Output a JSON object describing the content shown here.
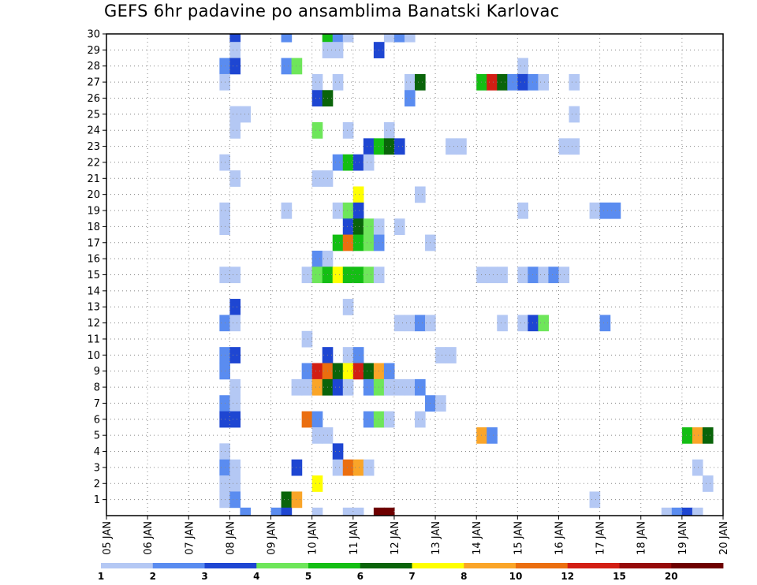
{
  "chart_data": {
    "type": "heatmap",
    "title": "GEFS 6hr padavine po ansamblima Banatski Karlovac",
    "xlabel": "",
    "ylabel": "",
    "x_ticks": [
      "05 JAN",
      "06 JAN",
      "07 JAN",
      "08 JAN",
      "09 JAN",
      "10 JAN",
      "11 JAN",
      "12 JAN",
      "13 JAN",
      "14 JAN",
      "15 JAN",
      "16 JAN",
      "17 JAN",
      "18 JAN",
      "19 JAN",
      "20 JAN"
    ],
    "x_range_days": [
      5,
      20
    ],
    "time_step_hours": 6,
    "y_ticks": [
      1,
      2,
      3,
      4,
      5,
      6,
      7,
      8,
      9,
      10,
      11,
      12,
      13,
      14,
      15,
      16,
      17,
      18,
      19,
      20,
      21,
      22,
      23,
      24,
      25,
      26,
      27,
      28,
      29,
      30
    ],
    "y_range": [
      0,
      30
    ],
    "grid": true,
    "legend": {
      "position": "bottom",
      "thresholds": [
        "1",
        "2",
        "3",
        "4",
        "5",
        "6",
        "7",
        "8",
        "10",
        "12",
        "15",
        "20"
      ],
      "colors": [
        "#b4c8f4",
        "#5a8cf0",
        "#1e46d2",
        "#6ee65a",
        "#14be14",
        "#0a640a",
        "#ffff00",
        "#faa528",
        "#eb6e0f",
        "#d21e14",
        "#960a0a",
        "#6e0000"
      ]
    },
    "cells_note": "each cell: [member, time step index from 05 JAN 00Z in 6h steps, color class index 0-11]",
    "cells": [
      [
        30,
        12,
        2
      ],
      [
        30,
        17,
        1
      ],
      [
        30,
        21,
        4
      ],
      [
        30,
        22,
        1
      ],
      [
        30,
        23,
        0
      ],
      [
        30,
        27,
        0
      ],
      [
        30,
        28,
        1
      ],
      [
        30,
        29,
        0
      ],
      [
        29,
        12,
        0
      ],
      [
        29,
        21,
        0
      ],
      [
        29,
        22,
        0
      ],
      [
        29,
        26,
        2
      ],
      [
        28,
        11,
        1
      ],
      [
        28,
        12,
        2
      ],
      [
        28,
        17,
        1
      ],
      [
        28,
        18,
        3
      ],
      [
        28,
        40,
        0
      ],
      [
        27,
        11,
        0
      ],
      [
        27,
        20,
        0
      ],
      [
        27,
        22,
        0
      ],
      [
        27,
        29,
        0
      ],
      [
        27,
        30,
        5
      ],
      [
        27,
        36,
        4
      ],
      [
        27,
        37,
        9
      ],
      [
        27,
        38,
        5
      ],
      [
        27,
        39,
        1
      ],
      [
        27,
        40,
        2
      ],
      [
        27,
        41,
        1
      ],
      [
        27,
        42,
        0
      ],
      [
        27,
        45,
        0
      ],
      [
        26,
        20,
        2
      ],
      [
        26,
        21,
        5
      ],
      [
        26,
        29,
        1
      ],
      [
        25,
        12,
        0
      ],
      [
        25,
        13,
        0
      ],
      [
        25,
        45,
        0
      ],
      [
        24,
        12,
        0
      ],
      [
        24,
        20,
        3
      ],
      [
        24,
        23,
        0
      ],
      [
        24,
        27,
        0
      ],
      [
        23,
        25,
        2
      ],
      [
        23,
        26,
        4
      ],
      [
        23,
        27,
        5
      ],
      [
        23,
        28,
        2
      ],
      [
        23,
        33,
        0
      ],
      [
        23,
        34,
        0
      ],
      [
        23,
        44,
        0
      ],
      [
        23,
        45,
        0
      ],
      [
        22,
        11,
        0
      ],
      [
        22,
        22,
        1
      ],
      [
        22,
        23,
        4
      ],
      [
        22,
        24,
        2
      ],
      [
        22,
        25,
        0
      ],
      [
        21,
        12,
        0
      ],
      [
        21,
        20,
        0
      ],
      [
        21,
        21,
        0
      ],
      [
        20,
        24,
        6
      ],
      [
        20,
        30,
        0
      ],
      [
        19,
        11,
        0
      ],
      [
        19,
        17,
        0
      ],
      [
        19,
        22,
        0
      ],
      [
        19,
        23,
        3
      ],
      [
        19,
        24,
        2
      ],
      [
        19,
        40,
        0
      ],
      [
        19,
        47,
        0
      ],
      [
        19,
        48,
        1
      ],
      [
        19,
        49,
        1
      ],
      [
        18,
        11,
        0
      ],
      [
        18,
        23,
        2
      ],
      [
        18,
        24,
        5
      ],
      [
        18,
        25,
        3
      ],
      [
        18,
        26,
        0
      ],
      [
        18,
        28,
        0
      ],
      [
        17,
        22,
        4
      ],
      [
        17,
        23,
        8
      ],
      [
        17,
        24,
        4
      ],
      [
        17,
        25,
        3
      ],
      [
        17,
        26,
        1
      ],
      [
        17,
        31,
        0
      ],
      [
        16,
        20,
        1
      ],
      [
        16,
        21,
        0
      ],
      [
        15,
        11,
        0
      ],
      [
        15,
        12,
        0
      ],
      [
        15,
        19,
        0
      ],
      [
        15,
        20,
        3
      ],
      [
        15,
        21,
        4
      ],
      [
        15,
        22,
        6
      ],
      [
        15,
        23,
        4
      ],
      [
        15,
        24,
        4
      ],
      [
        15,
        25,
        3
      ],
      [
        15,
        26,
        0
      ],
      [
        15,
        36,
        0
      ],
      [
        15,
        37,
        0
      ],
      [
        15,
        38,
        0
      ],
      [
        15,
        40,
        0
      ],
      [
        15,
        41,
        1
      ],
      [
        15,
        42,
        0
      ],
      [
        15,
        43,
        1
      ],
      [
        15,
        44,
        0
      ],
      [
        13,
        12,
        2
      ],
      [
        13,
        23,
        0
      ],
      [
        12,
        11,
        1
      ],
      [
        12,
        12,
        0
      ],
      [
        12,
        28,
        0
      ],
      [
        12,
        29,
        0
      ],
      [
        12,
        30,
        1
      ],
      [
        12,
        31,
        0
      ],
      [
        12,
        38,
        0
      ],
      [
        12,
        40,
        0
      ],
      [
        12,
        41,
        2
      ],
      [
        12,
        42,
        3
      ],
      [
        12,
        48,
        1
      ],
      [
        11,
        19,
        0
      ],
      [
        10,
        11,
        1
      ],
      [
        10,
        12,
        2
      ],
      [
        10,
        21,
        2
      ],
      [
        10,
        23,
        0
      ],
      [
        10,
        24,
        1
      ],
      [
        10,
        32,
        0
      ],
      [
        10,
        33,
        0
      ],
      [
        9,
        11,
        1
      ],
      [
        9,
        19,
        1
      ],
      [
        9,
        20,
        9
      ],
      [
        9,
        21,
        8
      ],
      [
        9,
        22,
        5
      ],
      [
        9,
        23,
        6
      ],
      [
        9,
        24,
        9
      ],
      [
        9,
        25,
        5
      ],
      [
        9,
        26,
        7
      ],
      [
        9,
        27,
        1
      ],
      [
        8,
        12,
        0
      ],
      [
        8,
        18,
        0
      ],
      [
        8,
        19,
        0
      ],
      [
        8,
        20,
        7
      ],
      [
        8,
        21,
        5
      ],
      [
        8,
        22,
        2
      ],
      [
        8,
        23,
        0
      ],
      [
        8,
        25,
        1
      ],
      [
        8,
        26,
        3
      ],
      [
        8,
        27,
        0
      ],
      [
        8,
        28,
        0
      ],
      [
        8,
        29,
        0
      ],
      [
        8,
        30,
        1
      ],
      [
        7,
        11,
        1
      ],
      [
        7,
        12,
        0
      ],
      [
        7,
        31,
        1
      ],
      [
        7,
        32,
        0
      ],
      [
        6,
        11,
        2
      ],
      [
        6,
        12,
        2
      ],
      [
        6,
        19,
        8
      ],
      [
        6,
        20,
        1
      ],
      [
        6,
        25,
        1
      ],
      [
        6,
        26,
        3
      ],
      [
        6,
        27,
        0
      ],
      [
        6,
        30,
        0
      ],
      [
        5,
        20,
        0
      ],
      [
        5,
        21,
        0
      ],
      [
        5,
        36,
        7
      ],
      [
        5,
        37,
        1
      ],
      [
        5,
        56,
        4
      ],
      [
        5,
        57,
        7
      ],
      [
        5,
        58,
        5
      ],
      [
        4,
        11,
        0
      ],
      [
        4,
        22,
        2
      ],
      [
        3,
        11,
        1
      ],
      [
        3,
        12,
        0
      ],
      [
        3,
        18,
        2
      ],
      [
        3,
        22,
        0
      ],
      [
        3,
        23,
        8
      ],
      [
        3,
        24,
        7
      ],
      [
        3,
        25,
        0
      ],
      [
        3,
        57,
        0
      ],
      [
        2,
        11,
        0
      ],
      [
        2,
        12,
        0
      ],
      [
        2,
        20,
        6
      ],
      [
        2,
        58,
        0
      ],
      [
        1,
        11,
        0
      ],
      [
        1,
        12,
        1
      ],
      [
        1,
        17,
        5
      ],
      [
        1,
        18,
        7
      ],
      [
        1,
        47,
        0
      ],
      [
        0,
        13,
        1
      ],
      [
        0,
        16,
        1
      ],
      [
        0,
        17,
        2
      ],
      [
        0,
        20,
        0
      ],
      [
        0,
        23,
        0
      ],
      [
        0,
        24,
        0
      ],
      [
        0,
        26,
        11
      ],
      [
        0,
        27,
        11
      ],
      [
        0,
        54,
        0
      ],
      [
        0,
        55,
        1
      ],
      [
        0,
        56,
        2
      ],
      [
        0,
        57,
        0
      ]
    ]
  }
}
